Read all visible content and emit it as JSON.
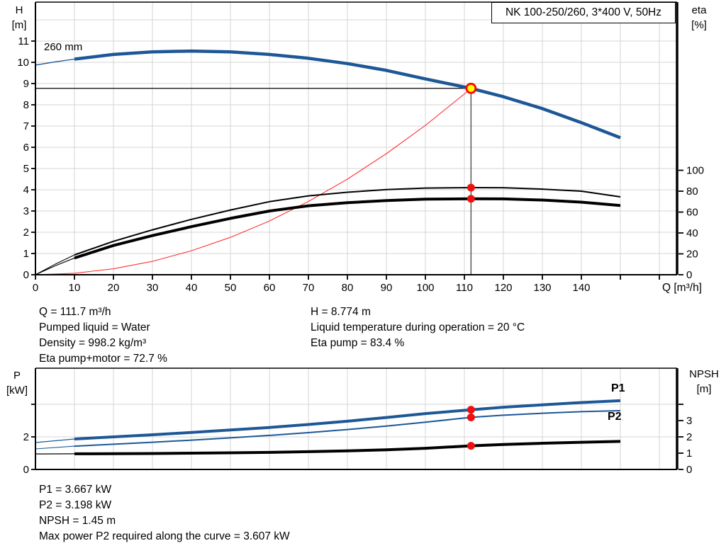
{
  "title_box": "NK 100-250/260, 3*400 V, 50Hz",
  "colors": {
    "curve_blue": "#1d5796",
    "curve_black": "#000000",
    "system_red": "#ff3333",
    "dot_red": "#ee1111",
    "duty_fill_yellow": "#ffff00",
    "duty_ring_red": "#ff0000",
    "grid": "#d4d4d4",
    "axis": "#000000"
  },
  "info_top": {
    "left": [
      "Q = 111.7 m³/h",
      "Pumped liquid = Water",
      "Density = 998.2 kg/m³",
      "Eta pump+motor = 72.7 %"
    ],
    "right": [
      "H = 8.774 m",
      "Liquid temperature during operation = 20 °C",
      "Eta pump = 83.4 %"
    ]
  },
  "info_bottom": [
    "P1 = 3.667 kW",
    "P2 = 3.198 kW",
    "NPSH = 1.45 m",
    "Max power P2 required along the curve = 3.607 kW"
  ],
  "chart_data": [
    {
      "id": "hq-eta-chart",
      "type": "line",
      "title": "NK 100-250/260, 3*400 V, 50Hz",
      "xlabel": "Q [m³/h]",
      "x_range": [
        0,
        164.5
      ],
      "x_ticks_labeled": [
        0,
        10,
        20,
        30,
        40,
        50,
        60,
        70,
        80,
        90,
        100,
        110,
        120,
        130,
        140
      ],
      "x_ticks_all": [
        0,
        10,
        20,
        30,
        40,
        50,
        60,
        70,
        80,
        90,
        100,
        110,
        120,
        130,
        140,
        150,
        160
      ],
      "grid_x": [
        10,
        20,
        30,
        40,
        50,
        60,
        70,
        80,
        90,
        100,
        110,
        120,
        130,
        140,
        150,
        160
      ],
      "left_axis": {
        "label": [
          "H",
          "[m]"
        ],
        "range": [
          0,
          12.83
        ],
        "ticks": [
          0,
          1,
          2,
          3,
          4,
          5,
          6,
          7,
          8,
          9,
          10,
          11
        ],
        "grid": [
          1,
          2,
          3,
          4,
          5,
          6,
          7,
          8,
          9,
          10,
          11,
          12
        ]
      },
      "right_axis": {
        "label": [
          "eta",
          "[%]"
        ],
        "range": [
          0,
          130.5
        ],
        "ticks": [
          0,
          20,
          40,
          60,
          80,
          100
        ]
      },
      "annotation": "260 mm",
      "duty_point": {
        "q": 111.7,
        "h": 8.774,
        "eta_pump": 83.4,
        "eta_pump_motor": 72.7
      },
      "series": [
        {
          "name": "system-curve",
          "axis": "left",
          "color": "#ff3333",
          "width": 1.1,
          "thin_until": 0,
          "points": [
            [
              0,
              0
            ],
            [
              10,
              0.07
            ],
            [
              20,
              0.28
            ],
            [
              30,
              0.63
            ],
            [
              40,
              1.13
            ],
            [
              50,
              1.76
            ],
            [
              60,
              2.53
            ],
            [
              70,
              3.45
            ],
            [
              80,
              4.5
            ],
            [
              90,
              5.7
            ],
            [
              100,
              7.03
            ],
            [
              110,
              8.51
            ],
            [
              111.7,
              8.774
            ]
          ]
        },
        {
          "name": "head-curve",
          "axis": "left",
          "color": "#1d5796",
          "width": 4.5,
          "thin_until": 10,
          "points": [
            [
              0,
              9.87
            ],
            [
              5,
              10.02
            ],
            [
              10,
              10.15
            ],
            [
              20,
              10.37
            ],
            [
              30,
              10.49
            ],
            [
              40,
              10.53
            ],
            [
              50,
              10.49
            ],
            [
              60,
              10.37
            ],
            [
              70,
              10.19
            ],
            [
              80,
              9.94
            ],
            [
              90,
              9.62
            ],
            [
              100,
              9.22
            ],
            [
              111.7,
              8.774
            ],
            [
              120,
              8.38
            ],
            [
              130,
              7.82
            ],
            [
              140,
              7.16
            ],
            [
              150,
              6.45
            ]
          ]
        },
        {
          "name": "eta-pump-curve",
          "axis": "right",
          "color": "#000000",
          "width": 2,
          "thin_until": 10,
          "points": [
            [
              0,
              0
            ],
            [
              5,
              10
            ],
            [
              10,
              19
            ],
            [
              20,
              32
            ],
            [
              30,
              43
            ],
            [
              40,
              53
            ],
            [
              50,
              62
            ],
            [
              60,
              70
            ],
            [
              70,
              75.5
            ],
            [
              80,
              79
            ],
            [
              90,
              81.5
            ],
            [
              100,
              83
            ],
            [
              111.7,
              83.4
            ],
            [
              120,
              83.3
            ],
            [
              130,
              82
            ],
            [
              140,
              80
            ],
            [
              150,
              74.6
            ]
          ]
        },
        {
          "name": "eta-pump-motor-curve",
          "axis": "right",
          "color": "#000000",
          "width": 4,
          "thin_until": 10,
          "points": [
            [
              0,
              0
            ],
            [
              5,
              8.5
            ],
            [
              10,
              16
            ],
            [
              20,
              28
            ],
            [
              30,
              37.5
            ],
            [
              40,
              46
            ],
            [
              50,
              54
            ],
            [
              60,
              61
            ],
            [
              70,
              66
            ],
            [
              80,
              69
            ],
            [
              90,
              71
            ],
            [
              100,
              72.4
            ],
            [
              111.7,
              72.7
            ],
            [
              120,
              72.6
            ],
            [
              130,
              71.5
            ],
            [
              140,
              69.5
            ],
            [
              150,
              66.3
            ]
          ]
        }
      ]
    },
    {
      "id": "power-npsh-chart",
      "type": "line",
      "xlabel": "",
      "x_range": [
        0,
        164.5
      ],
      "grid_x": [
        10,
        20,
        30,
        40,
        50,
        60,
        70,
        80,
        90,
        100,
        110,
        120,
        130,
        140,
        150,
        160
      ],
      "left_axis": {
        "label": [
          "P",
          "[kW]"
        ],
        "range": [
          0,
          6.2
        ],
        "ticks": [
          0,
          2,
          4
        ],
        "ticks_labeled": [
          0,
          2
        ],
        "grid": [
          2,
          4
        ]
      },
      "right_axis": {
        "label": [
          "NPSH",
          "[m]"
        ],
        "range": [
          0,
          6.2
        ],
        "ticks": [
          0,
          1,
          2,
          3,
          4
        ],
        "ticks_labeled": [
          0,
          1,
          2,
          3
        ]
      },
      "duty_point": {
        "q": 111.7,
        "p1": 3.667,
        "p2": 3.198,
        "npsh": 1.45
      },
      "series": [
        {
          "name": "p1-curve",
          "label": "P1",
          "axis": "left",
          "color": "#1d5796",
          "width": 4,
          "thin_until": 10,
          "points": [
            [
              0,
              1.65
            ],
            [
              10,
              1.87
            ],
            [
              20,
              2.0
            ],
            [
              30,
              2.13
            ],
            [
              40,
              2.27
            ],
            [
              50,
              2.42
            ],
            [
              60,
              2.58
            ],
            [
              70,
              2.76
            ],
            [
              80,
              2.96
            ],
            [
              90,
              3.19
            ],
            [
              100,
              3.43
            ],
            [
              111.7,
              3.667
            ],
            [
              120,
              3.82
            ],
            [
              130,
              3.97
            ],
            [
              140,
              4.11
            ],
            [
              150,
              4.22
            ]
          ]
        },
        {
          "name": "p2-curve",
          "label": "P2",
          "axis": "left",
          "color": "#1d5796",
          "width": 2,
          "thin_until": 10,
          "points": [
            [
              0,
              1.26
            ],
            [
              10,
              1.43
            ],
            [
              20,
              1.55
            ],
            [
              30,
              1.67
            ],
            [
              40,
              1.8
            ],
            [
              50,
              1.94
            ],
            [
              60,
              2.09
            ],
            [
              70,
              2.26
            ],
            [
              80,
              2.45
            ],
            [
              90,
              2.66
            ],
            [
              100,
              2.9
            ],
            [
              111.7,
              3.198
            ],
            [
              120,
              3.33
            ],
            [
              130,
              3.45
            ],
            [
              140,
              3.55
            ],
            [
              150,
              3.607
            ]
          ]
        },
        {
          "name": "npsh-curve",
          "label": "NPSH",
          "axis": "right",
          "color": "#000000",
          "width": 4,
          "thin_until": 10,
          "points": [
            [
              0,
              0.95
            ],
            [
              10,
              0.96
            ],
            [
              20,
              0.97
            ],
            [
              30,
              0.98
            ],
            [
              40,
              1.0
            ],
            [
              50,
              1.02
            ],
            [
              60,
              1.05
            ],
            [
              70,
              1.09
            ],
            [
              80,
              1.14
            ],
            [
              90,
              1.21
            ],
            [
              100,
              1.3
            ],
            [
              111.7,
              1.45
            ],
            [
              120,
              1.53
            ],
            [
              130,
              1.61
            ],
            [
              140,
              1.67
            ],
            [
              150,
              1.72
            ]
          ]
        }
      ]
    }
  ]
}
